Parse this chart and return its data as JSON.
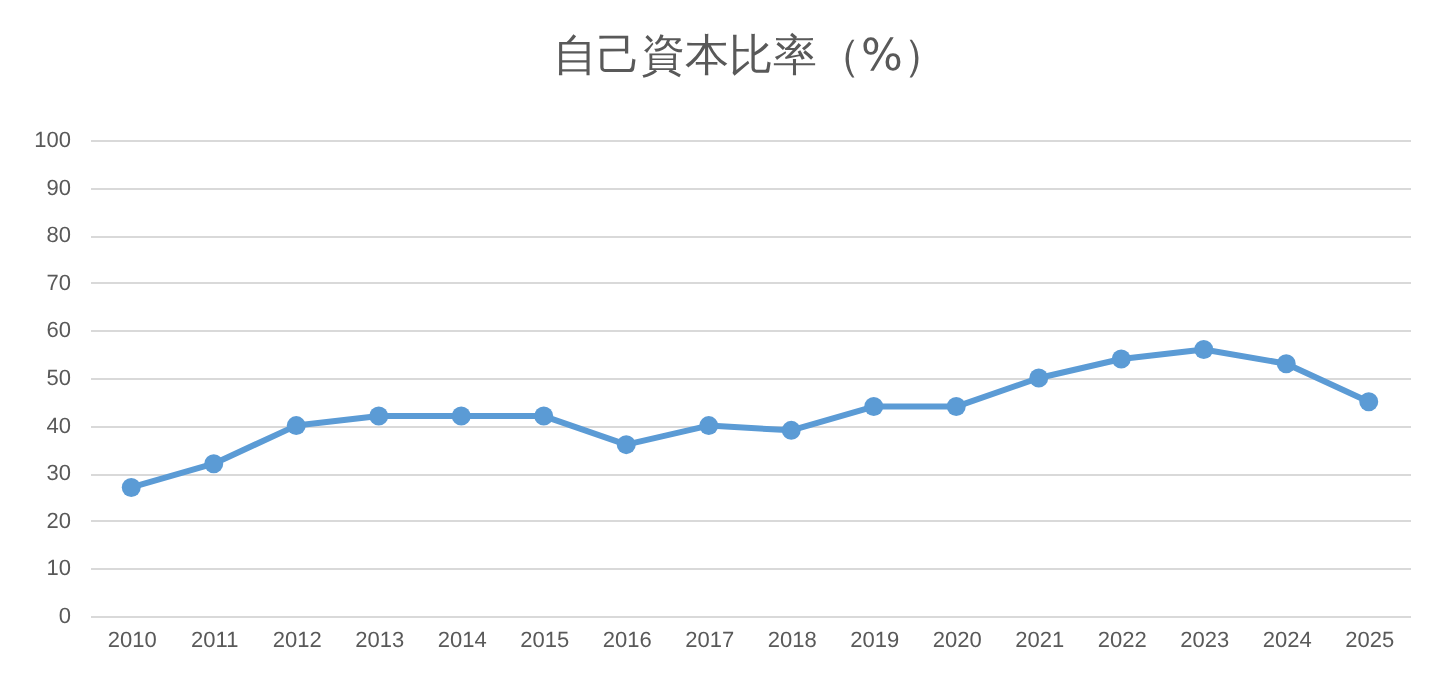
{
  "chart_data": {
    "type": "line",
    "title": "自己資本比率（%）",
    "categories": [
      "2010",
      "2011",
      "2012",
      "2013",
      "2014",
      "2015",
      "2016",
      "2017",
      "2018",
      "2019",
      "2020",
      "2021",
      "2022",
      "2023",
      "2024",
      "2025"
    ],
    "series": [
      {
        "color": "#5b9bd5",
        "values": [
          27,
          32,
          40,
          42,
          42,
          42,
          36,
          40,
          39,
          44,
          44,
          50,
          54,
          56,
          53,
          45
        ]
      }
    ],
    "ylim": [
      0,
      100
    ],
    "yticks": [
      0,
      10,
      20,
      30,
      40,
      50,
      60,
      70,
      80,
      90,
      100
    ],
    "grid": "y",
    "marker": "circle",
    "line_style": "solid",
    "legend": false
  }
}
